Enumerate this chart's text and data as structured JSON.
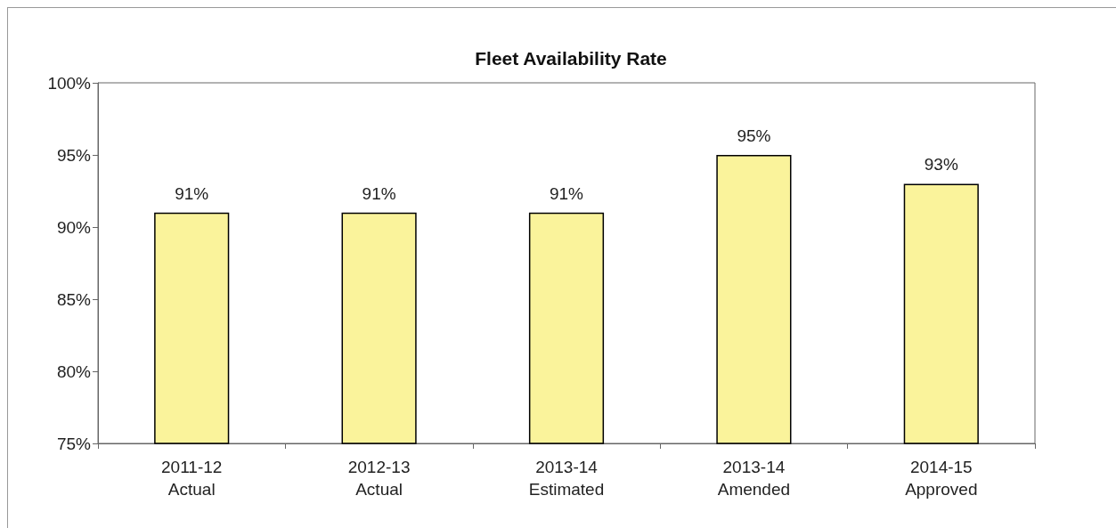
{
  "chart_data": {
    "type": "bar",
    "title": "Fleet Availability Rate",
    "categories": [
      "2011-12\nActual",
      "2012-13\nActual",
      "2013-14\nEstimated",
      "2013-14\nAmended",
      "2014-15\nApproved"
    ],
    "values": [
      91,
      91,
      91,
      95,
      93
    ],
    "value_labels": [
      "91%",
      "91%",
      "91%",
      "95%",
      "93%"
    ],
    "color": "#faf39b",
    "ylim": [
      75,
      100
    ],
    "yticks": [
      {
        "value": 75,
        "label": "75%"
      },
      {
        "value": 80,
        "label": "80%"
      },
      {
        "value": 85,
        "label": "85%"
      },
      {
        "value": 90,
        "label": "90%"
      },
      {
        "value": 95,
        "label": "95%"
      },
      {
        "value": 100,
        "label": "100%"
      }
    ],
    "grid": false
  }
}
